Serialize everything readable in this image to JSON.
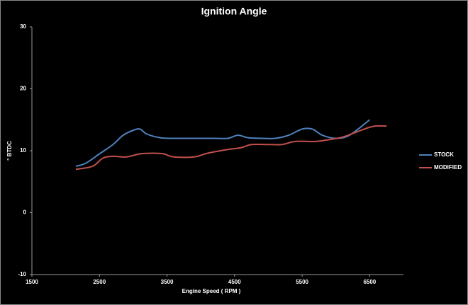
{
  "chart_data": {
    "type": "line",
    "title": "Ignition Angle",
    "xlabel": "Engine Speed ( RPM )",
    "ylabel": "° BTDC",
    "xlim": [
      1500,
      7000
    ],
    "xticks": [
      1500,
      2500,
      3500,
      4500,
      5500,
      6500
    ],
    "ylim": [
      -10,
      30
    ],
    "yticks": [
      -10,
      0,
      10,
      20,
      30
    ],
    "legend": "right",
    "series": [
      {
        "name": "STOCK",
        "color": "#4f81bd",
        "x": [
          2150,
          2300,
          2500,
          2700,
          2850,
          3000,
          3100,
          3200,
          3400,
          3600,
          3800,
          4000,
          4200,
          4400,
          4550,
          4700,
          4900,
          5100,
          5300,
          5500,
          5650,
          5800,
          6000,
          6200,
          6500
        ],
        "values": [
          7.5,
          8,
          9.5,
          11,
          12.5,
          13.3,
          13.5,
          12.7,
          12.1,
          12,
          12,
          12,
          12,
          12,
          12.5,
          12.1,
          12,
          12,
          12.5,
          13.5,
          13.5,
          12.5,
          12,
          12.5,
          15
        ]
      },
      {
        "name": "MODIFIED",
        "color": "#c0504d",
        "x": [
          2150,
          2400,
          2550,
          2700,
          2900,
          3100,
          3300,
          3450,
          3600,
          3900,
          4100,
          4400,
          4600,
          4750,
          5000,
          5200,
          5400,
          5700,
          5900,
          6100,
          6300,
          6500,
          6600,
          6750
        ],
        "values": [
          7,
          7.5,
          8.8,
          9.1,
          9,
          9.5,
          9.6,
          9.5,
          9,
          9,
          9.6,
          10.2,
          10.5,
          11,
          11,
          11,
          11.5,
          11.5,
          11.8,
          12.2,
          13,
          13.8,
          14,
          14
        ]
      }
    ]
  }
}
